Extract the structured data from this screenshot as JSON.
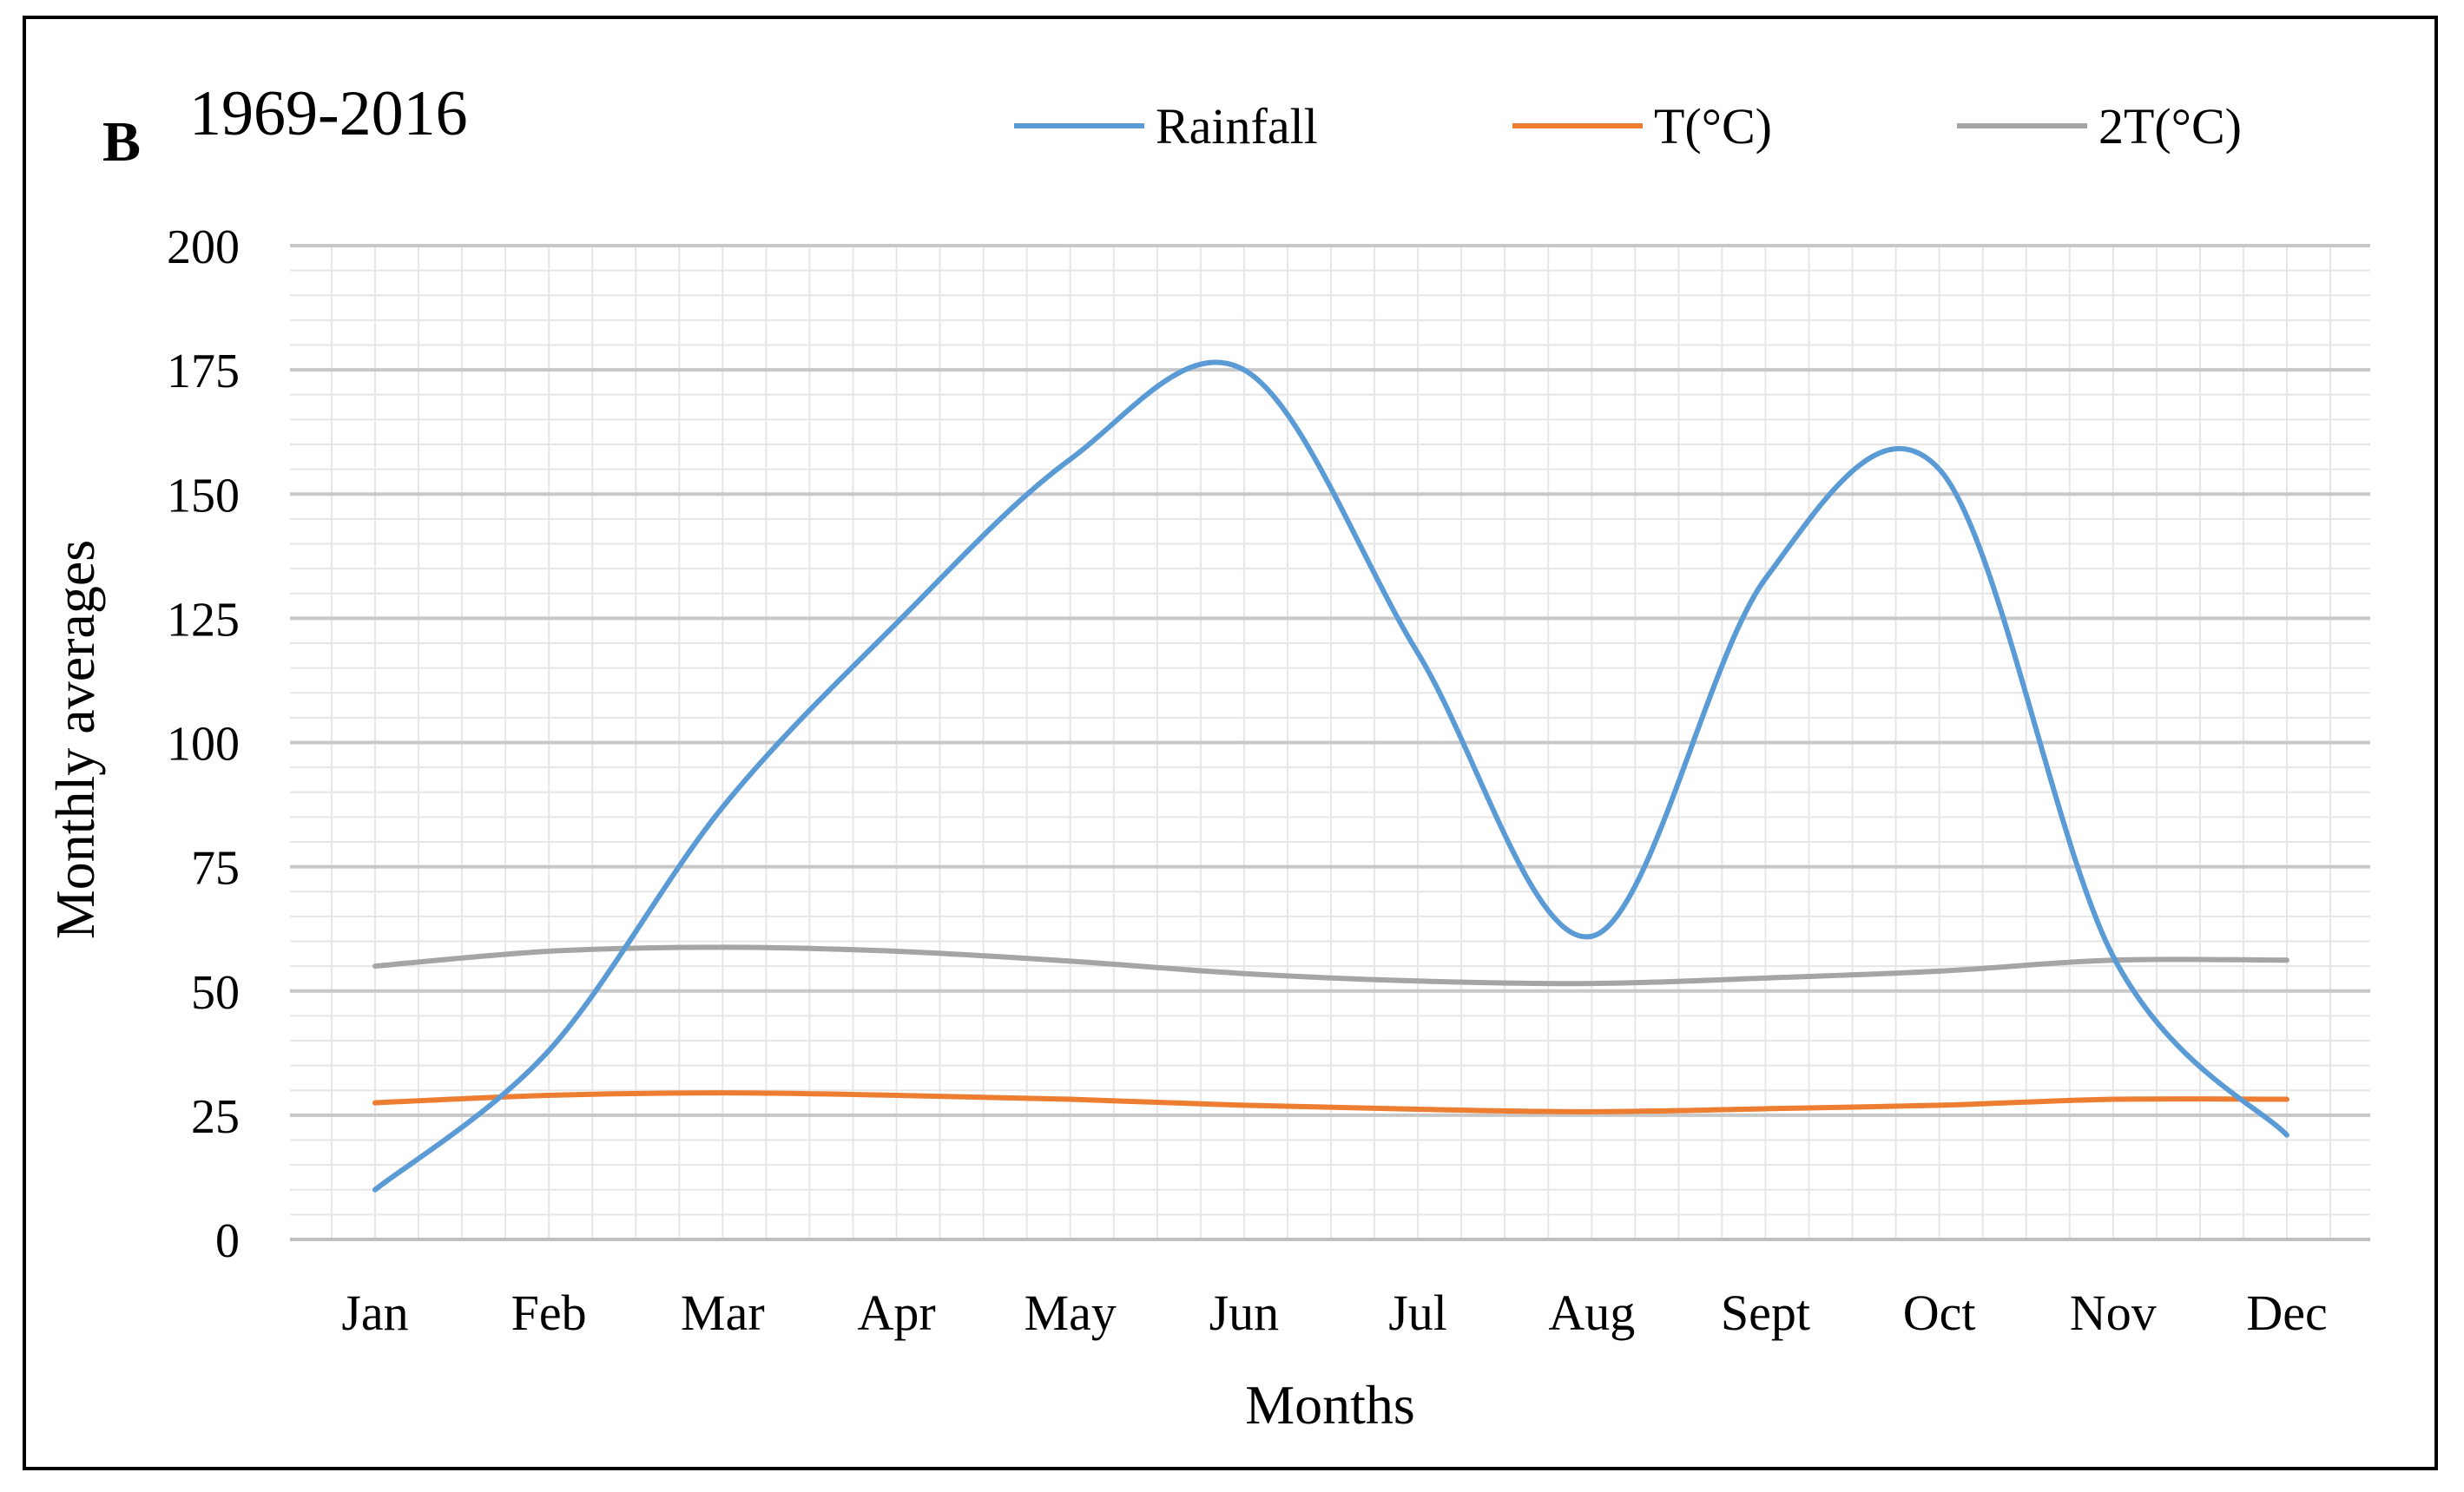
{
  "panel_label": "B",
  "chart_data": {
    "type": "line",
    "title": "1969-2016",
    "xlabel": "Months",
    "ylabel": "Monthly averages",
    "categories": [
      "Jan",
      "Feb",
      "Mar",
      "Apr",
      "May",
      "Jun",
      "Jul",
      "Aug",
      "Sept",
      "Oct",
      "Nov",
      "Dec"
    ],
    "ylim": [
      0,
      200
    ],
    "yticks": [
      0,
      25,
      50,
      75,
      100,
      125,
      150,
      175,
      200
    ],
    "grid": true,
    "legend_position": "top",
    "series": [
      {
        "name": "Rainfall",
        "color": "#5b9bd5",
        "values": [
          10,
          38,
          87,
          124,
          157,
          175,
          118,
          61,
          133,
          155,
          57,
          21
        ]
      },
      {
        "name": "T(°C)",
        "color": "#ed7d31",
        "values": [
          27.5,
          29,
          29.5,
          29,
          28.2,
          27,
          26.2,
          25.7,
          26.3,
          27,
          28.2,
          28.2
        ]
      },
      {
        "name": "2T(°C)",
        "color": "#a5a5a5",
        "values": [
          55,
          58,
          58.8,
          58,
          56,
          53.5,
          52,
          51.5,
          52.6,
          54,
          56.2,
          56.2
        ]
      }
    ]
  }
}
